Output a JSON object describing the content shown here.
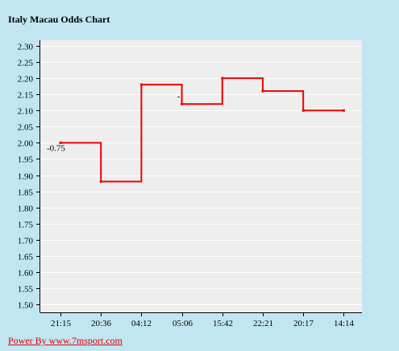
{
  "title": "Italy Macau Odds Chart",
  "credit": "Power By www.7msport.com",
  "colors": {
    "background": "#c1e6f2",
    "plot_background": "#eeeeee",
    "gridline": "#ffffff",
    "line": "#ee0000"
  },
  "chart_data": {
    "type": "line",
    "title": "Italy Macau Odds Chart",
    "xlabel": "",
    "ylabel": "",
    "ylim": [
      1.5,
      2.3
    ],
    "y_ticks": [
      "2.30",
      "2.25",
      "2.20",
      "2.15",
      "2.10",
      "2.05",
      "2.00",
      "1.95",
      "1.90",
      "1.85",
      "1.80",
      "1.75",
      "1.70",
      "1.65",
      "1.60",
      "1.55",
      "1.50"
    ],
    "categories": [
      "21:15",
      "20:36",
      "04:12",
      "05:06",
      "15:42",
      "22:21",
      "20:17",
      "14:14"
    ],
    "step": "post",
    "series": [
      {
        "values": [
          2.0,
          1.88,
          2.18,
          2.12,
          2.2,
          2.16,
          2.1,
          2.1
        ]
      }
    ],
    "annotations": [
      {
        "text": "-0.75",
        "category": "21:15",
        "y": 2.0
      },
      {
        "text": "-",
        "category": "05:06",
        "y": 2.12
      }
    ],
    "grid": true,
    "legend": "none"
  }
}
